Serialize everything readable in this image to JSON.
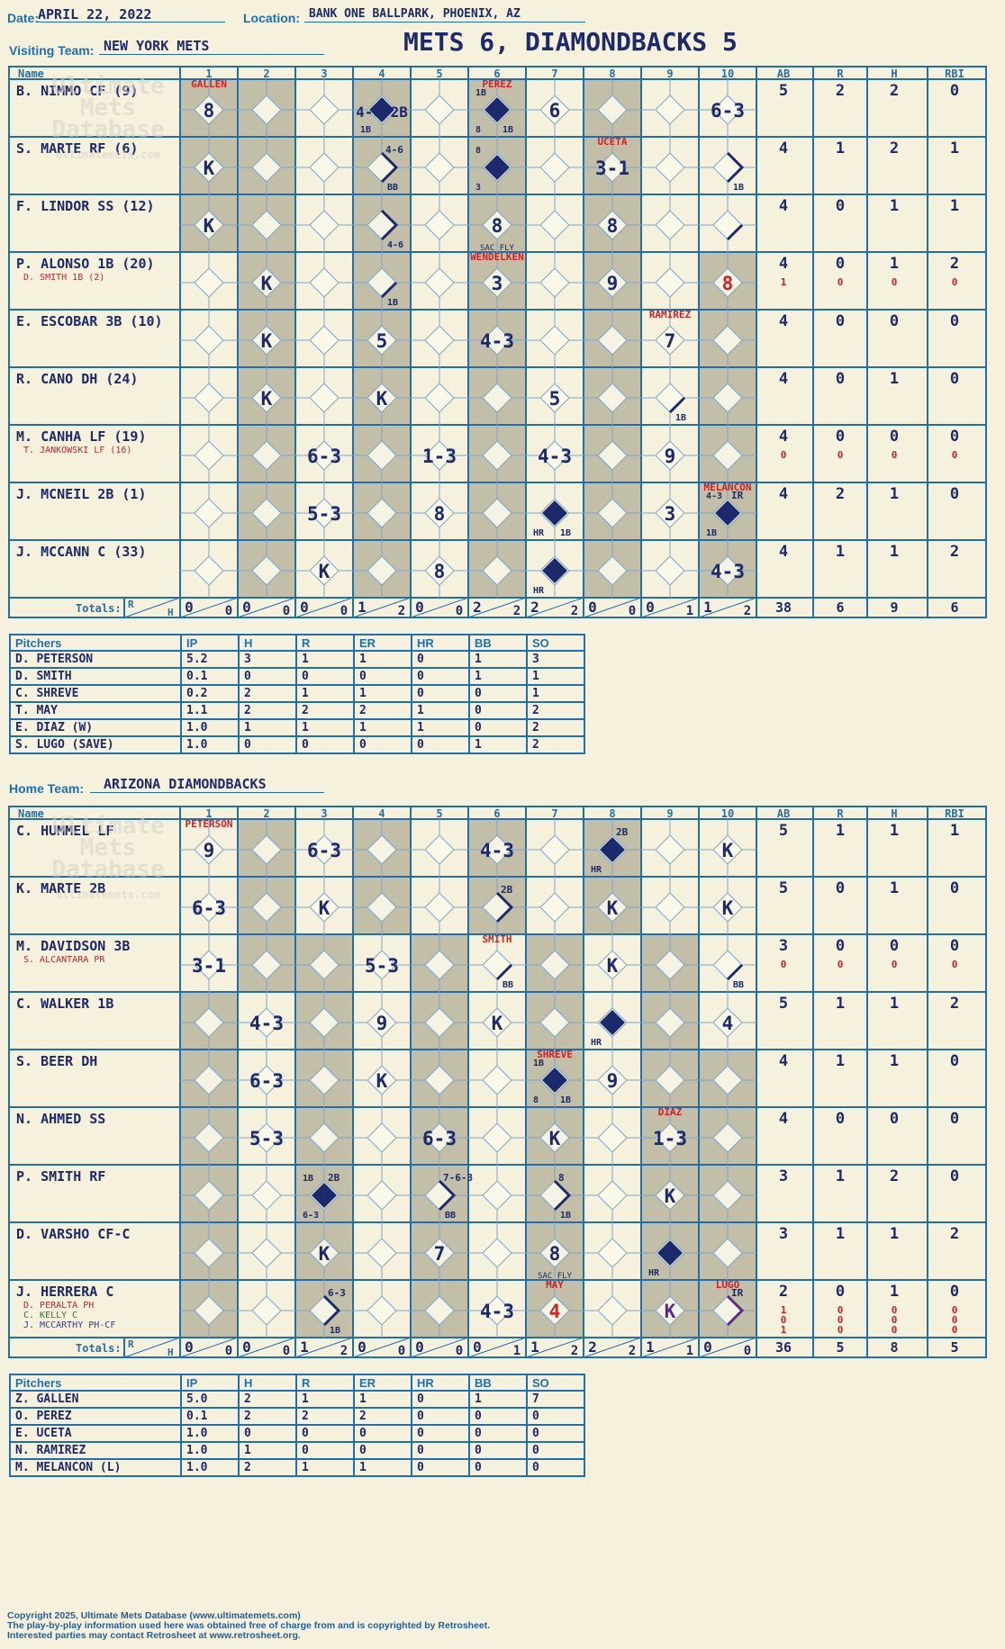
{
  "header": {
    "date_label": "Date:",
    "date": "APRIL 22, 2022",
    "location_label": "Location:",
    "location": "BANK ONE BALLPARK, PHOENIX, AZ",
    "visiting_label": "Visiting Team:",
    "visiting_team": "NEW YORK METS",
    "title": "METS 6, DIAMONDBACKS 5",
    "home_label": "Home Team:",
    "home_team": "ARIZONA DIAMONDBACKS"
  },
  "columns": {
    "name": "Name",
    "innings": [
      "1",
      "2",
      "3",
      "4",
      "5",
      "6",
      "7",
      "8",
      "9",
      "10"
    ],
    "stats": [
      "AB",
      "R",
      "H",
      "RBI"
    ],
    "totals_label": "Totals:",
    "r": "R",
    "h": "H"
  },
  "watermark": [
    "Ultimate",
    "Mets",
    "Database",
    "ultimatemets.com"
  ],
  "colors": {
    "grid": "#1f6fb0",
    "shade": "#c3bea8",
    "paper": "#f6f1dc",
    "ink": "#1c2a6b",
    "red": "#d4201f"
  },
  "visiting": {
    "shade": [
      [
        1,
        1,
        0,
        1,
        0,
        1,
        0,
        1,
        0
      ],
      [
        1,
        1,
        0,
        1,
        0,
        1,
        0,
        1,
        0
      ],
      [
        1,
        1,
        0,
        1,
        0,
        1,
        0,
        1,
        0
      ],
      [
        0,
        1,
        0,
        1,
        0,
        1,
        0,
        1,
        0,
        1
      ],
      [
        0,
        1,
        0,
        1,
        0,
        1,
        0,
        1,
        0,
        1
      ],
      [
        0,
        1,
        0,
        1,
        0,
        1,
        0,
        1,
        0,
        1
      ],
      [
        0,
        1,
        0,
        1,
        0,
        1,
        0,
        1,
        0,
        1
      ],
      [
        0,
        1,
        0,
        1,
        0,
        1,
        0,
        1,
        0,
        1
      ],
      [
        0,
        1,
        0,
        1,
        0,
        1,
        0,
        1,
        0,
        1
      ]
    ],
    "rows": [
      {
        "name": "B. NIMMO CF (9)",
        "subs": [],
        "stats": [
          [
            "5",
            "2",
            "2",
            "0"
          ]
        ],
        "cells": [
          {
            "i": 1,
            "c": "8",
            "note": "GALLEN"
          },
          {
            "i": 4,
            "c": "4-6 2B",
            "dia": "fill",
            "bl": "1B"
          },
          {
            "i": 6,
            "dia": "fill",
            "note": "PEREZ",
            "tl": "1B",
            "bl": "8",
            "br": "1B"
          },
          {
            "i": 7,
            "c": "6"
          },
          {
            "i": 10,
            "c": "6-3"
          }
        ]
      },
      {
        "name": "S. MARTE RF (6)",
        "subs": [],
        "stats": [
          [
            "4",
            "1",
            "2",
            "1"
          ]
        ],
        "cells": [
          {
            "i": 1,
            "c": "K"
          },
          {
            "i": 4,
            "tr": "4-6",
            "br": "BB",
            "path": "walk"
          },
          {
            "i": 6,
            "dia": "fill",
            "tl": "8",
            "bl": "3"
          },
          {
            "i": 8,
            "c": "3-1",
            "note": "UCETA"
          },
          {
            "i": 10,
            "br": "1B",
            "path": "single2"
          }
        ]
      },
      {
        "name": "F. LINDOR SS (12)",
        "subs": [],
        "stats": [
          [
            "4",
            "0",
            "1",
            "1"
          ]
        ],
        "cells": [
          {
            "i": 1,
            "c": "K"
          },
          {
            "i": 4,
            "br": "4-6",
            "path": "single2"
          },
          {
            "i": 6,
            "c": "8",
            "sub": "SAC FLY"
          },
          {
            "i": 8,
            "c": "8"
          },
          {
            "i": 10,
            "path": "single"
          }
        ]
      },
      {
        "name": "P. ALONSO 1B (20)",
        "subs": [
          "D. SMITH 1B (2)"
        ],
        "stats": [
          [
            "4",
            "0",
            "1",
            "2"
          ],
          [
            "1",
            "0",
            "0",
            "0"
          ]
        ],
        "cells": [
          {
            "i": 2,
            "c": "K"
          },
          {
            "i": 4,
            "br": "1B",
            "path": "single"
          },
          {
            "i": 6,
            "c": "3",
            "note": "WENDELKEN"
          },
          {
            "i": 8,
            "c": "9"
          },
          {
            "i": 10,
            "c": "8",
            "red": true
          }
        ]
      },
      {
        "name": "E. ESCOBAR 3B (10)",
        "subs": [],
        "stats": [
          [
            "4",
            "0",
            "0",
            "0"
          ]
        ],
        "cells": [
          {
            "i": 2,
            "c": "K"
          },
          {
            "i": 4,
            "c": "5"
          },
          {
            "i": 6,
            "c": "4-3"
          },
          {
            "i": 9,
            "c": "7",
            "note": "RAMIREZ"
          }
        ]
      },
      {
        "name": "R. CANO DH (24)",
        "subs": [],
        "stats": [
          [
            "4",
            "0",
            "1",
            "0"
          ]
        ],
        "cells": [
          {
            "i": 2,
            "c": "K"
          },
          {
            "i": 4,
            "c": "K"
          },
          {
            "i": 7,
            "c": "5"
          },
          {
            "i": 9,
            "br": "1B",
            "path": "single"
          }
        ]
      },
      {
        "name": "M. CANHA LF (19)",
        "subs": [
          "T. JANKOWSKI LF (16)"
        ],
        "stats": [
          [
            "4",
            "0",
            "0",
            "0"
          ],
          [
            "0",
            "0",
            "0",
            "0"
          ]
        ],
        "cells": [
          {
            "i": 3,
            "c": "6-3"
          },
          {
            "i": 5,
            "c": "1-3"
          },
          {
            "i": 7,
            "c": "4-3"
          },
          {
            "i": 9,
            "c": "9"
          }
        ]
      },
      {
        "name": "J. MCNEIL 2B (1)",
        "subs": [],
        "stats": [
          [
            "4",
            "2",
            "1",
            "0"
          ]
        ],
        "cells": [
          {
            "i": 3,
            "c": "5-3"
          },
          {
            "i": 5,
            "c": "8"
          },
          {
            "i": 7,
            "dia": "fill",
            "bl": "HR",
            "br": "1B"
          },
          {
            "i": 9,
            "c": "3"
          },
          {
            "i": 10,
            "dia": "fill",
            "note": "MELANCON",
            "tl": "4-3",
            "tr": "IR",
            "bl": "1B"
          }
        ]
      },
      {
        "name": "J. MCCANN C (33)",
        "subs": [],
        "stats": [
          [
            "4",
            "1",
            "1",
            "2"
          ]
        ],
        "cells": [
          {
            "i": 3,
            "c": "K"
          },
          {
            "i": 5,
            "c": "8"
          },
          {
            "i": 7,
            "dia": "fill",
            "bl": "HR"
          },
          {
            "i": 10,
            "c": "4-3"
          }
        ]
      }
    ],
    "totals": [
      [
        "0",
        "0"
      ],
      [
        "0",
        "0"
      ],
      [
        "0",
        "0"
      ],
      [
        "1",
        "2"
      ],
      [
        "0",
        "0"
      ],
      [
        "2",
        "2"
      ],
      [
        "2",
        "2"
      ],
      [
        "0",
        "0"
      ],
      [
        "0",
        "1"
      ],
      [
        "1",
        "2"
      ]
    ],
    "stat_totals": [
      "38",
      "6",
      "9",
      "6"
    ],
    "pitchers_header": [
      "Pitchers",
      "IP",
      "H",
      "R",
      "ER",
      "HR",
      "BB",
      "SO"
    ],
    "pitchers": [
      [
        "D. PETERSON",
        "5.2",
        "3",
        "1",
        "1",
        "0",
        "1",
        "3"
      ],
      [
        "D. SMITH",
        "0.1",
        "0",
        "0",
        "0",
        "0",
        "1",
        "1"
      ],
      [
        "C. SHREVE",
        "0.2",
        "2",
        "1",
        "1",
        "0",
        "0",
        "1"
      ],
      [
        "T. MAY",
        "1.1",
        "2",
        "2",
        "2",
        "1",
        "0",
        "2"
      ],
      [
        "E. DIAZ (W)",
        "1.0",
        "1",
        "1",
        "1",
        "1",
        "0",
        "2"
      ],
      [
        "S. LUGO (SAVE)",
        "1.0",
        "0",
        "0",
        "0",
        "0",
        "1",
        "2"
      ]
    ]
  },
  "home": {
    "shade": [
      [
        0,
        1,
        0,
        1,
        0,
        1,
        0,
        1,
        0
      ],
      [
        0,
        1,
        0,
        1,
        0,
        1,
        0,
        1,
        0
      ],
      [
        0,
        1,
        1,
        0,
        1,
        0,
        1,
        0,
        1,
        0
      ],
      [
        1,
        0,
        1,
        0,
        1,
        0,
        1,
        0,
        1
      ],
      [
        1,
        0,
        1,
        0,
        1,
        0,
        1,
        0,
        1,
        1
      ],
      [
        1,
        0,
        1,
        0,
        1,
        0,
        1,
        0,
        1,
        1
      ],
      [
        1,
        0,
        1,
        0,
        1,
        0,
        1,
        0,
        1,
        1
      ],
      [
        1,
        0,
        1,
        0,
        1,
        0,
        1,
        0,
        1,
        1
      ],
      [
        1,
        0,
        1,
        0,
        1,
        0,
        1,
        0,
        1,
        1
      ]
    ],
    "rows": [
      {
        "name": "C. HUMMEL LF",
        "subs": [],
        "stats": [
          [
            "5",
            "1",
            "1",
            "1"
          ]
        ],
        "cells": [
          {
            "i": 1,
            "c": "9",
            "note": "PETERSON"
          },
          {
            "i": 3,
            "c": "6-3"
          },
          {
            "i": 6,
            "c": "4-3"
          },
          {
            "i": 8,
            "dia": "fill",
            "tr": "2B",
            "bl": "HR"
          },
          {
            "i": 10,
            "c": "K"
          }
        ]
      },
      {
        "name": "K. MARTE 2B",
        "subs": [],
        "stats": [
          [
            "5",
            "0",
            "1",
            "0"
          ]
        ],
        "cells": [
          {
            "i": 1,
            "c": "6-3"
          },
          {
            "i": 3,
            "c": "K"
          },
          {
            "i": 6,
            "tr": "2B",
            "path": "double"
          },
          {
            "i": 8,
            "c": "K"
          },
          {
            "i": 10,
            "c": "K"
          }
        ]
      },
      {
        "name": "M. DAVIDSON 3B",
        "subs": [
          "S. ALCANTARA PR"
        ],
        "stats": [
          [
            "3",
            "0",
            "0",
            "0"
          ],
          [
            "0",
            "0",
            "0",
            "0"
          ]
        ],
        "cells": [
          {
            "i": 1,
            "c": "3-1"
          },
          {
            "i": 4,
            "c": "5-3"
          },
          {
            "i": 6,
            "note": "SMITH",
            "br": "BB",
            "path": "single"
          },
          {
            "i": 8,
            "c": "K"
          },
          {
            "i": 10,
            "br": "BB",
            "path": "single"
          }
        ]
      },
      {
        "name": "C. WALKER 1B",
        "subs": [],
        "stats": [
          [
            "5",
            "1",
            "1",
            "2"
          ]
        ],
        "cells": [
          {
            "i": 2,
            "c": "4-3"
          },
          {
            "i": 4,
            "c": "9"
          },
          {
            "i": 6,
            "c": "K"
          },
          {
            "i": 8,
            "dia": "fill",
            "bl": "HR"
          },
          {
            "i": 10,
            "c": "4"
          }
        ]
      },
      {
        "name": "S. BEER DH",
        "subs": [],
        "stats": [
          [
            "4",
            "1",
            "1",
            "0"
          ]
        ],
        "cells": [
          {
            "i": 2,
            "c": "6-3"
          },
          {
            "i": 4,
            "c": "K"
          },
          {
            "i": 7,
            "dia": "fill",
            "note": "SHREVE",
            "tl": "1B",
            "bl": "8",
            "br": "1B"
          },
          {
            "i": 8,
            "c": "9"
          }
        ]
      },
      {
        "name": "N. AHMED SS",
        "subs": [],
        "stats": [
          [
            "4",
            "0",
            "0",
            "0"
          ]
        ],
        "cells": [
          {
            "i": 2,
            "c": "5-3"
          },
          {
            "i": 5,
            "c": "6-3"
          },
          {
            "i": 7,
            "c": "K"
          },
          {
            "i": 9,
            "c": "1-3",
            "note": "DIAZ"
          }
        ]
      },
      {
        "name": "P. SMITH RF",
        "subs": [],
        "stats": [
          [
            "3",
            "1",
            "2",
            "0"
          ]
        ],
        "cells": [
          {
            "i": 3,
            "dia": "fill",
            "tl": "1B",
            "tr": "2B",
            "bl": "6-3"
          },
          {
            "i": 5,
            "tr": "7-6-3",
            "br": "BB",
            "path": "walk"
          },
          {
            "i": 7,
            "tr": "8",
            "br": "1B",
            "path": "single2"
          },
          {
            "i": 9,
            "c": "K"
          }
        ]
      },
      {
        "name": "D. VARSHO CF-C",
        "subs": [],
        "stats": [
          [
            "3",
            "1",
            "1",
            "2"
          ]
        ],
        "cells": [
          {
            "i": 3,
            "c": "K"
          },
          {
            "i": 5,
            "c": "7"
          },
          {
            "i": 7,
            "c": "8",
            "sub": "SAC FLY"
          },
          {
            "i": 9,
            "dia": "fill",
            "bl": "HR"
          }
        ]
      },
      {
        "name": "J. HERRERA C",
        "subs": [
          "D. PERALTA PH",
          "C. KELLY C",
          "J. MCCARTHY PH-CF"
        ],
        "stats": [
          [
            "2",
            "0",
            "1",
            "0"
          ],
          [
            "1",
            "0",
            "0",
            "0"
          ],
          [
            "0",
            "0",
            "0",
            "0"
          ],
          [
            "1",
            "0",
            "0",
            "0"
          ]
        ],
        "cells": [
          {
            "i": 3,
            "tr": "6-3",
            "br": "1B",
            "path": "single2"
          },
          {
            "i": 6,
            "c": "4-3"
          },
          {
            "i": 7,
            "c": "4",
            "red": true,
            "note": "MAY"
          },
          {
            "i": 9,
            "c": "K",
            "purple": true
          },
          {
            "i": 10,
            "tr": "IR",
            "note": "LUGO",
            "path": "single2",
            "purple": true
          }
        ]
      }
    ],
    "totals": [
      [
        "0",
        "0"
      ],
      [
        "0",
        "0"
      ],
      [
        "1",
        "2"
      ],
      [
        "0",
        "0"
      ],
      [
        "0",
        "0"
      ],
      [
        "0",
        "1"
      ],
      [
        "1",
        "2"
      ],
      [
        "2",
        "2"
      ],
      [
        "1",
        "1"
      ],
      [
        "0",
        "0"
      ]
    ],
    "stat_totals": [
      "36",
      "5",
      "8",
      "5"
    ],
    "pitchers_header": [
      "Pitchers",
      "IP",
      "H",
      "R",
      "ER",
      "HR",
      "BB",
      "SO"
    ],
    "pitchers": [
      [
        "Z. GALLEN",
        "5.0",
        "2",
        "1",
        "1",
        "0",
        "1",
        "7"
      ],
      [
        "O. PEREZ",
        "0.1",
        "2",
        "2",
        "2",
        "0",
        "0",
        "0"
      ],
      [
        "E. UCETA",
        "1.0",
        "0",
        "0",
        "0",
        "0",
        "0",
        "0"
      ],
      [
        "N. RAMIREZ",
        "1.0",
        "1",
        "0",
        "0",
        "0",
        "0",
        "0"
      ],
      [
        "M. MELANCON (L)",
        "1.0",
        "2",
        "1",
        "1",
        "0",
        "0",
        "0"
      ]
    ]
  },
  "footer": [
    "Copyright 2025, Ultimate Mets Database (www.ultimatemets.com)",
    "The play-by-play information used here was obtained free of charge from and is copyrighted by Retrosheet.",
    "Interested parties may contact Retrosheet at www.retrosheet.org."
  ]
}
